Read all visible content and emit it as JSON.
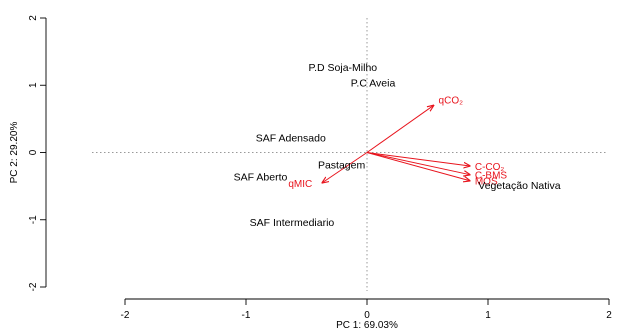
{
  "chart_data": {
    "type": "scatter",
    "title": "",
    "xlabel": "PC 1: 69.03%",
    "ylabel": "PC 2: 29.20%",
    "xlim": [
      -2,
      2
    ],
    "ylim": [
      -2,
      2
    ],
    "x_ticks": [
      "-2",
      "-1",
      "0",
      "1",
      "2"
    ],
    "y_ticks": [
      "-2",
      "-1",
      "0",
      "1",
      "2"
    ],
    "grid": false,
    "reference_lines": [
      0,
      0
    ],
    "observations": [
      {
        "label": "P.D Soja-Milho",
        "x": -0.2,
        "y": 1.27
      },
      {
        "label": "P.C Aveia",
        "x": 0.05,
        "y": 1.04
      },
      {
        "label": "SAF Adensado",
        "x": -0.63,
        "y": 0.22
      },
      {
        "label": "Pastagem",
        "x": -0.21,
        "y": -0.18
      },
      {
        "label": "SAF Aberto",
        "x": -0.88,
        "y": -0.36
      },
      {
        "label": "SAF Intermediario",
        "x": -0.62,
        "y": -1.03
      },
      {
        "label": "Vegetação Nativa",
        "x": 1.26,
        "y": -0.48
      }
    ],
    "loadings": [
      {
        "label": "qCO₂",
        "x": 0.55,
        "y": 0.7
      },
      {
        "label": "C-CO₂",
        "x": 0.85,
        "y": -0.2
      },
      {
        "label": "C-BMS",
        "x": 0.85,
        "y": -0.33
      },
      {
        "label": "MOS",
        "x": 0.85,
        "y": -0.42
      },
      {
        "label": "qMIC",
        "x": -0.37,
        "y": -0.45
      }
    ],
    "colors": {
      "observations": "#000000",
      "loadings": "#e8141d",
      "reference_lines": "#999999"
    }
  }
}
